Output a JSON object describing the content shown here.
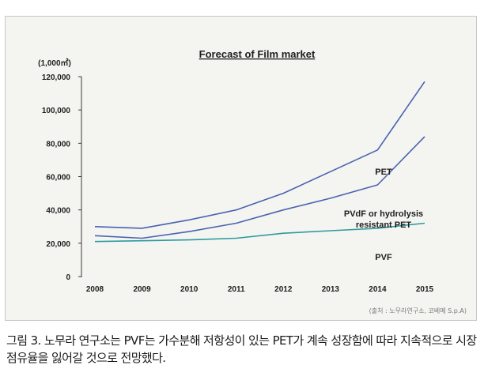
{
  "chart_data": {
    "type": "line",
    "title": "Forecast of Film market",
    "unit": "(1,000㎡)",
    "x": [
      "2008",
      "2009",
      "2010",
      "2011",
      "2012",
      "2013",
      "2014",
      "2015"
    ],
    "ylim": [
      0,
      120000
    ],
    "yticks": [
      "0",
      "20,000",
      "40,000",
      "60,000",
      "80,000",
      "100,000",
      "120,000"
    ],
    "ytick_values": [
      0,
      20000,
      40000,
      60000,
      80000,
      100000,
      120000
    ],
    "series": [
      {
        "name": "PET",
        "values": [
          30000,
          29000,
          34000,
          40000,
          50000,
          63000,
          76000,
          117000
        ],
        "color": "#4a62b0"
      },
      {
        "name": "PVdF or hydrolysis resistant PET",
        "values": [
          24500,
          23000,
          27000,
          32000,
          40000,
          47000,
          55000,
          84000
        ],
        "color": "#4a62b0"
      },
      {
        "name": "PVF",
        "values": [
          21000,
          21500,
          22000,
          23000,
          26000,
          27500,
          29000,
          32000
        ],
        "color": "#2e9aa0"
      }
    ],
    "series_labels": {
      "pet": "PET",
      "pvdf_line1": "PVdF or hydrolysis",
      "pvdf_line2": "resistant PET",
      "pvf": "PVF"
    },
    "grid": false,
    "legend": "none"
  },
  "source": "(출처 : 노무라연구소, 코베메 S.p.A)",
  "caption": "그림 3. 노무라 연구소는 PVF는 가수분해 저항성이 있는 PET가 계속 성장함에 따라 지속적으로 시장 점유율을 잃어갈 것으로 전망했다."
}
